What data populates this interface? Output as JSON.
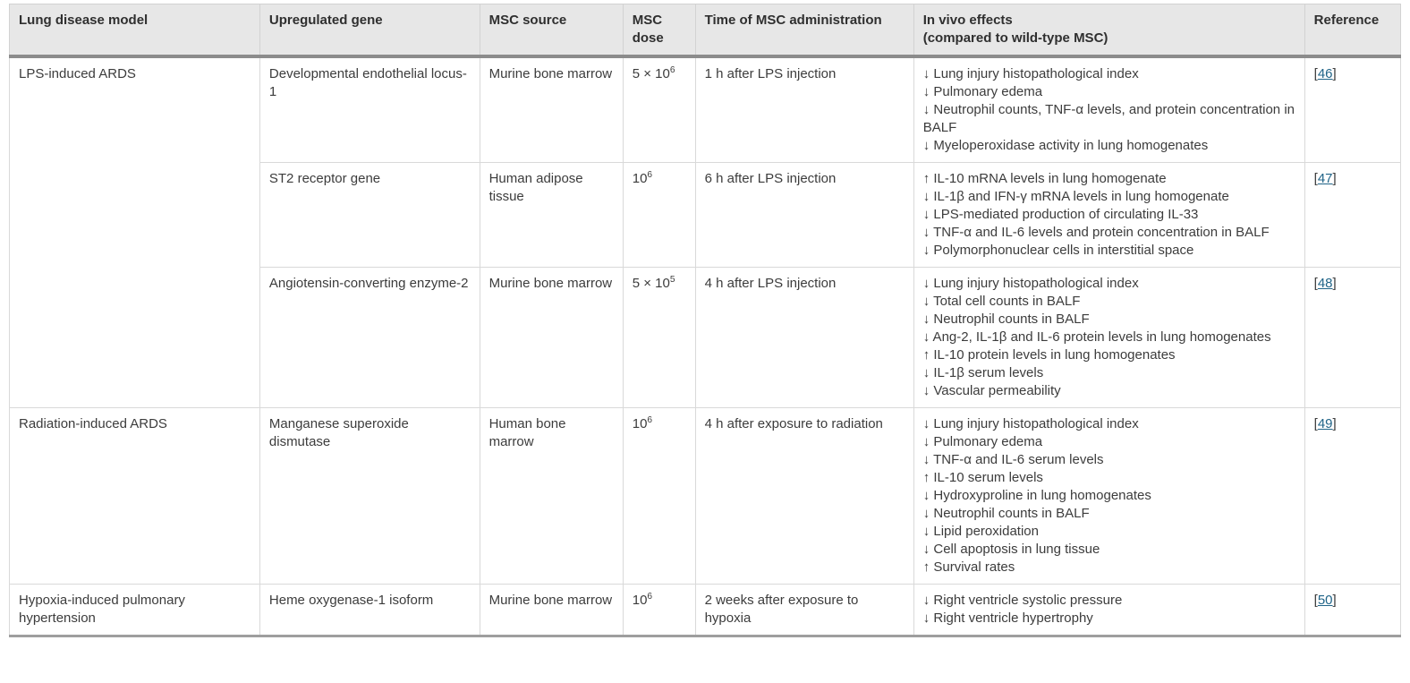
{
  "table": {
    "headers": [
      "Lung disease model",
      "Upregulated gene",
      "MSC source",
      "MSC dose",
      "Time of MSC administration",
      "In vivo effects\n(compared to wild-type MSC)",
      "Reference"
    ],
    "ref_format": {
      "open": "[",
      "close": "]"
    },
    "link_color": "#206488",
    "header_bg": "#e7e7e7",
    "rows": [
      {
        "model": "LPS-induced ARDS",
        "gene": "Developmental endothelial locus-1",
        "source": "Murine bone marrow",
        "dose_base": "5 × 10",
        "dose_exp": "6",
        "time": "1 h after LPS injection",
        "effects": "↓ Lung injury histopathological index\n↓ Pulmonary edema\n↓ Neutrophil counts, TNF-α levels, and protein concentration in BALF\n↓ Myeloperoxidase activity in lung homogenates",
        "ref": "46"
      },
      {
        "gene": "ST2 receptor gene",
        "source": "Human adipose tissue",
        "dose_base": "10",
        "dose_exp": "6",
        "time": "6 h after LPS injection",
        "effects": "↑ IL-10 mRNA levels in lung homogenate\n↓ IL-1β and IFN-γ mRNA levels in lung homogenate\n↓ LPS-mediated production of circulating IL-33\n↓ TNF-α and IL-6 levels and protein concentration in BALF\n↓ Polymorphonuclear cells in interstitial space",
        "ref": "47"
      },
      {
        "gene": "Angiotensin-converting enzyme-2",
        "source": "Murine bone marrow",
        "dose_base": "5 × 10",
        "dose_exp": "5",
        "time": "4 h after LPS injection",
        "effects": "↓ Lung injury histopathological index\n↓ Total cell counts in BALF\n↓ Neutrophil counts in BALF\n↓ Ang-2, IL-1β and IL-6 protein levels in lung homogenates\n↑ IL-10 protein levels in lung homogenates\n↓ IL-1β serum levels\n↓ Vascular permeability",
        "ref": "48"
      },
      {
        "model": "Radiation-induced ARDS",
        "gene": "Manganese superoxide dismutase",
        "source": "Human bone marrow",
        "dose_base": "10",
        "dose_exp": "6",
        "time": "4 h after exposure to radiation",
        "effects": "↓ Lung injury histopathological index\n↓ Pulmonary edema\n↓ TNF-α and IL-6 serum levels\n↑ IL-10 serum levels\n↓ Hydroxyproline in lung homogenates\n↓ Neutrophil counts in BALF\n↓ Lipid peroxidation\n↓ Cell apoptosis in lung tissue\n↑ Survival rates",
        "ref": "49"
      },
      {
        "model": "Hypoxia-induced pulmonary hypertension",
        "gene": "Heme oxygenase-1 isoform",
        "source": "Murine bone marrow",
        "dose_base": "10",
        "dose_exp": "6",
        "time": "2 weeks after exposure to hypoxia",
        "effects": "↓ Right ventricle systolic pressure\n↓ Right ventricle hypertrophy",
        "ref": "50"
      }
    ]
  }
}
